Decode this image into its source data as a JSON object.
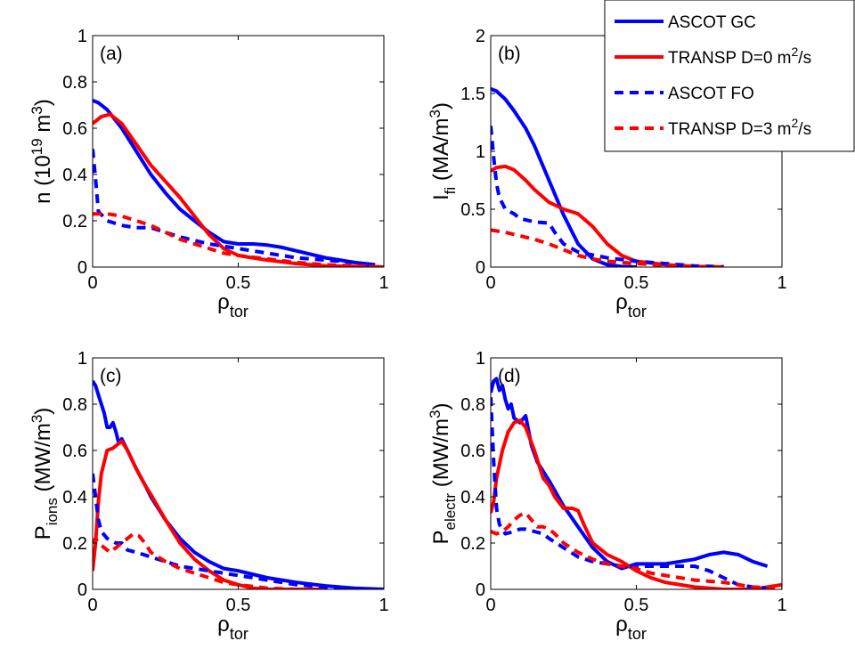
{
  "legend": {
    "placement": "top-right",
    "entries": [
      {
        "name": "ASCOT GC",
        "text": "ASCOT GC",
        "sup": "",
        "tail": "",
        "color": "#0000ff",
        "dash": "solid"
      },
      {
        "name": "TRANSP D=0 m2/s",
        "text": "TRANSP D=0 m",
        "sup": "2",
        "tail": "/s",
        "color": "#ff0000",
        "dash": "solid"
      },
      {
        "name": "ASCOT FO",
        "text": "ASCOT FO",
        "sup": "",
        "tail": "",
        "color": "#0000ff",
        "dash": "dashed"
      },
      {
        "name": "TRANSP D=3 m2/s",
        "text": "TRANSP D=3 m",
        "sup": "2",
        "tail": "/s",
        "color": "#ff0000",
        "dash": "dashed"
      }
    ]
  },
  "chart_data": [
    {
      "type": "line",
      "panel": "(a)",
      "xlabel": {
        "main": "ρ",
        "sub": "tor"
      },
      "ylabel": {
        "parts": [
          [
            "n (10",
            ""
          ],
          [
            "19",
            "sup"
          ],
          [
            " m",
            ""
          ],
          [
            "3",
            "sup"
          ],
          [
            ")",
            ""
          ]
        ]
      },
      "xlim": [
        0,
        1
      ],
      "ylim": [
        0,
        1
      ],
      "xticks": [
        "0",
        "0.5",
        "1"
      ],
      "yticks": [
        "0",
        "0.2",
        "0.4",
        "0.6",
        "0.8",
        "1"
      ],
      "grid": false,
      "series": [
        {
          "name": "ASCOT GC",
          "x": [
            0,
            0.02,
            0.05,
            0.1,
            0.15,
            0.2,
            0.25,
            0.3,
            0.35,
            0.4,
            0.45,
            0.5,
            0.55,
            0.6,
            0.65,
            0.7,
            0.8,
            0.9,
            0.97
          ],
          "y": [
            0.72,
            0.71,
            0.68,
            0.6,
            0.5,
            0.4,
            0.32,
            0.25,
            0.2,
            0.15,
            0.11,
            0.1,
            0.1,
            0.095,
            0.085,
            0.07,
            0.04,
            0.02,
            0.01
          ]
        },
        {
          "name": "TRANSP D=0 m2/s",
          "x": [
            0,
            0.03,
            0.06,
            0.1,
            0.15,
            0.2,
            0.25,
            0.3,
            0.35,
            0.4,
            0.45,
            0.5,
            0.55,
            0.6,
            0.7,
            0.8,
            1.0
          ],
          "y": [
            0.62,
            0.65,
            0.66,
            0.62,
            0.53,
            0.44,
            0.37,
            0.3,
            0.22,
            0.14,
            0.08,
            0.05,
            0.04,
            0.03,
            0.015,
            0.005,
            0
          ]
        },
        {
          "name": "ASCOT FO",
          "x": [
            0,
            0.01,
            0.02,
            0.05,
            0.1,
            0.15,
            0.2,
            0.25,
            0.3,
            0.4,
            0.5,
            0.6,
            0.7,
            0.8,
            0.9,
            0.95
          ],
          "y": [
            0.51,
            0.38,
            0.24,
            0.2,
            0.18,
            0.17,
            0.17,
            0.15,
            0.13,
            0.1,
            0.08,
            0.06,
            0.04,
            0.03,
            0.02,
            0.01
          ]
        },
        {
          "name": "TRANSP D=3 m2/s",
          "x": [
            0,
            0.05,
            0.1,
            0.15,
            0.2,
            0.25,
            0.3,
            0.35,
            0.4,
            0.45,
            0.5,
            0.6,
            0.7,
            0.8,
            0.9,
            1.0
          ],
          "y": [
            0.23,
            0.23,
            0.22,
            0.2,
            0.18,
            0.15,
            0.12,
            0.1,
            0.08,
            0.06,
            0.05,
            0.035,
            0.02,
            0.01,
            0.005,
            0
          ]
        }
      ]
    },
    {
      "type": "line",
      "panel": "(b)",
      "xlabel": {
        "main": "ρ",
        "sub": "tor"
      },
      "ylabel": {
        "parts": [
          [
            "I",
            ""
          ],
          [
            "fi",
            "sub"
          ],
          [
            " (MA/m",
            ""
          ],
          [
            "3",
            "sup"
          ],
          [
            ")",
            ""
          ]
        ]
      },
      "xlim": [
        0,
        1
      ],
      "ylim": [
        0,
        2
      ],
      "xticks": [
        "0",
        "0.5",
        "1"
      ],
      "yticks": [
        "0",
        "0.5",
        "1",
        "1.5",
        "2"
      ],
      "grid": false,
      "series": [
        {
          "name": "ASCOT GC",
          "x": [
            0,
            0.02,
            0.05,
            0.08,
            0.12,
            0.15,
            0.2,
            0.25,
            0.3,
            0.35,
            0.4,
            0.45,
            0.5
          ],
          "y": [
            1.54,
            1.52,
            1.45,
            1.35,
            1.2,
            1.05,
            0.75,
            0.45,
            0.2,
            0.07,
            0.02,
            0.005,
            0
          ]
        },
        {
          "name": "TRANSP D=0 m2/s",
          "x": [
            0,
            0.02,
            0.05,
            0.08,
            0.12,
            0.15,
            0.2,
            0.25,
            0.3,
            0.35,
            0.4,
            0.45,
            0.5,
            0.6,
            0.7,
            0.8
          ],
          "y": [
            0.83,
            0.86,
            0.87,
            0.84,
            0.75,
            0.67,
            0.56,
            0.5,
            0.46,
            0.35,
            0.2,
            0.1,
            0.05,
            0.02,
            0.005,
            0
          ]
        },
        {
          "name": "ASCOT FO",
          "x": [
            0,
            0.01,
            0.02,
            0.03,
            0.05,
            0.08,
            0.1,
            0.15,
            0.2,
            0.22,
            0.25,
            0.3,
            0.4,
            0.5,
            0.6,
            0.7,
            0.8
          ],
          "y": [
            1.22,
            0.95,
            0.72,
            0.6,
            0.5,
            0.46,
            0.42,
            0.39,
            0.38,
            0.3,
            0.2,
            0.13,
            0.08,
            0.05,
            0.03,
            0.01,
            0.003
          ]
        },
        {
          "name": "TRANSP D=3 m2/s",
          "x": [
            0,
            0.05,
            0.1,
            0.15,
            0.2,
            0.25,
            0.3,
            0.35,
            0.4,
            0.5,
            0.6,
            0.7,
            0.8
          ],
          "y": [
            0.32,
            0.3,
            0.27,
            0.24,
            0.2,
            0.15,
            0.1,
            0.07,
            0.05,
            0.03,
            0.015,
            0.005,
            0
          ]
        }
      ]
    },
    {
      "type": "line",
      "panel": "(c)",
      "xlabel": {
        "main": "ρ",
        "sub": "tor"
      },
      "ylabel": {
        "parts": [
          [
            "P",
            ""
          ],
          [
            "ions",
            "sub"
          ],
          [
            " (MW/m",
            ""
          ],
          [
            "3",
            "sup"
          ],
          [
            ")",
            ""
          ]
        ]
      },
      "xlim": [
        0,
        1
      ],
      "ylim": [
        0,
        1
      ],
      "xticks": [
        "0",
        "0.5",
        "1"
      ],
      "yticks": [
        "0",
        "0.2",
        "0.4",
        "0.6",
        "0.8",
        "1"
      ],
      "grid": false,
      "series": [
        {
          "name": "ASCOT GC",
          "x": [
            0,
            0.01,
            0.02,
            0.03,
            0.04,
            0.05,
            0.06,
            0.07,
            0.08,
            0.09,
            0.1,
            0.12,
            0.15,
            0.18,
            0.2,
            0.25,
            0.3,
            0.35,
            0.4,
            0.45,
            0.5,
            0.6,
            0.7,
            0.8,
            0.9,
            1.0
          ],
          "y": [
            0.9,
            0.88,
            0.84,
            0.8,
            0.76,
            0.7,
            0.7,
            0.72,
            0.68,
            0.63,
            0.65,
            0.6,
            0.52,
            0.45,
            0.4,
            0.3,
            0.22,
            0.16,
            0.12,
            0.09,
            0.08,
            0.05,
            0.03,
            0.015,
            0.005,
            0
          ]
        },
        {
          "name": "TRANSP D=0 m2/s",
          "x": [
            0,
            0.01,
            0.02,
            0.03,
            0.05,
            0.07,
            0.09,
            0.1,
            0.12,
            0.15,
            0.18,
            0.2,
            0.25,
            0.3,
            0.35,
            0.4,
            0.45,
            0.5,
            0.55,
            0.6,
            0.7,
            0.8
          ],
          "y": [
            0.08,
            0.2,
            0.38,
            0.5,
            0.6,
            0.61,
            0.63,
            0.64,
            0.6,
            0.52,
            0.45,
            0.41,
            0.3,
            0.2,
            0.13,
            0.08,
            0.04,
            0.02,
            0.005,
            0,
            0,
            0
          ]
        },
        {
          "name": "ASCOT FO",
          "x": [
            0,
            0.01,
            0.02,
            0.03,
            0.05,
            0.08,
            0.1,
            0.12,
            0.15,
            0.2,
            0.25,
            0.3,
            0.4,
            0.5,
            0.6,
            0.7,
            0.8,
            0.9,
            1.0
          ],
          "y": [
            0.5,
            0.4,
            0.3,
            0.25,
            0.22,
            0.2,
            0.2,
            0.17,
            0.16,
            0.14,
            0.12,
            0.1,
            0.08,
            0.06,
            0.04,
            0.02,
            0.01,
            0.003,
            0
          ]
        },
        {
          "name": "TRANSP D=3 m2/s",
          "x": [
            0,
            0.01,
            0.02,
            0.04,
            0.06,
            0.08,
            0.1,
            0.12,
            0.14,
            0.16,
            0.18,
            0.2,
            0.25,
            0.3,
            0.35,
            0.4,
            0.45,
            0.5,
            0.6,
            0.7
          ],
          "y": [
            0.2,
            0.22,
            0.2,
            0.18,
            0.16,
            0.18,
            0.2,
            0.22,
            0.24,
            0.23,
            0.2,
            0.16,
            0.12,
            0.09,
            0.07,
            0.05,
            0.03,
            0.02,
            0.005,
            0
          ]
        }
      ]
    },
    {
      "type": "line",
      "panel": "(d)",
      "xlabel": {
        "main": "ρ",
        "sub": "tor"
      },
      "ylabel": {
        "parts": [
          [
            "P",
            ""
          ],
          [
            "electr",
            "sub"
          ],
          [
            " (MW/m",
            ""
          ],
          [
            "3",
            "sup"
          ],
          [
            ")",
            ""
          ]
        ]
      },
      "xlim": [
        0,
        1
      ],
      "ylim": [
        0,
        1
      ],
      "xticks": [
        "0",
        "0.5",
        "1"
      ],
      "yticks": [
        "0",
        "0.2",
        "0.4",
        "0.6",
        "0.8",
        "1"
      ],
      "grid": false,
      "series": [
        {
          "name": "ASCOT GC",
          "x": [
            0,
            0.01,
            0.02,
            0.03,
            0.04,
            0.05,
            0.06,
            0.07,
            0.08,
            0.1,
            0.12,
            0.14,
            0.16,
            0.2,
            0.25,
            0.3,
            0.35,
            0.4,
            0.45,
            0.5,
            0.55,
            0.6,
            0.65,
            0.7,
            0.75,
            0.8,
            0.85,
            0.9,
            0.95
          ],
          "y": [
            0.85,
            0.9,
            0.91,
            0.86,
            0.88,
            0.82,
            0.78,
            0.8,
            0.74,
            0.72,
            0.75,
            0.62,
            0.55,
            0.47,
            0.36,
            0.27,
            0.18,
            0.12,
            0.09,
            0.11,
            0.11,
            0.11,
            0.12,
            0.13,
            0.15,
            0.16,
            0.15,
            0.12,
            0.1
          ]
        },
        {
          "name": "TRANSP D=0 m2/s",
          "x": [
            0,
            0.01,
            0.02,
            0.04,
            0.06,
            0.08,
            0.1,
            0.12,
            0.15,
            0.18,
            0.2,
            0.22,
            0.25,
            0.28,
            0.3,
            0.32,
            0.35,
            0.4,
            0.45,
            0.5,
            0.55,
            0.6,
            0.7,
            0.8,
            0.9,
            1.0
          ],
          "y": [
            0.33,
            0.38,
            0.48,
            0.6,
            0.68,
            0.72,
            0.73,
            0.7,
            0.6,
            0.48,
            0.45,
            0.4,
            0.35,
            0.35,
            0.34,
            0.28,
            0.2,
            0.15,
            0.12,
            0.08,
            0.05,
            0.03,
            0.01,
            0,
            0,
            0.02
          ]
        },
        {
          "name": "ASCOT FO",
          "x": [
            0,
            0.01,
            0.02,
            0.03,
            0.05,
            0.08,
            0.1,
            0.12,
            0.15,
            0.18,
            0.2,
            0.25,
            0.3,
            0.35,
            0.4,
            0.45,
            0.5,
            0.55,
            0.6,
            0.65,
            0.7,
            0.75,
            0.8,
            0.85,
            0.9,
            0.95
          ],
          "y": [
            0.83,
            0.55,
            0.35,
            0.28,
            0.24,
            0.25,
            0.26,
            0.26,
            0.25,
            0.24,
            0.22,
            0.18,
            0.14,
            0.12,
            0.11,
            0.1,
            0.1,
            0.1,
            0.1,
            0.1,
            0.1,
            0.08,
            0.05,
            0.02,
            0.01,
            0.005
          ]
        },
        {
          "name": "TRANSP D=3 m2/s",
          "x": [
            0,
            0.02,
            0.04,
            0.06,
            0.08,
            0.1,
            0.12,
            0.14,
            0.16,
            0.18,
            0.2,
            0.22,
            0.25,
            0.3,
            0.35,
            0.4,
            0.45,
            0.5,
            0.55,
            0.6,
            0.7,
            0.8,
            0.9,
            1.0
          ],
          "y": [
            0.25,
            0.24,
            0.25,
            0.27,
            0.3,
            0.32,
            0.33,
            0.3,
            0.27,
            0.27,
            0.26,
            0.24,
            0.2,
            0.16,
            0.13,
            0.11,
            0.1,
            0.09,
            0.07,
            0.06,
            0.04,
            0.03,
            0.01,
            0.005
          ]
        }
      ]
    }
  ]
}
